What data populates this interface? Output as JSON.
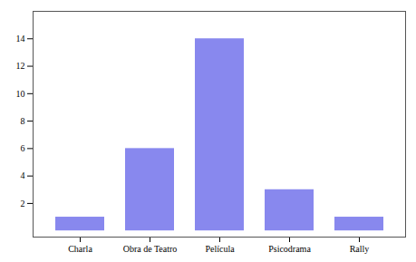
{
  "chart_data": {
    "type": "bar",
    "categories": [
      "Charla",
      "Obra de Teatro",
      "Película",
      "Psicodrama",
      "Rally"
    ],
    "values": [
      1,
      6,
      14,
      3,
      1
    ],
    "color": "#8888ee",
    "ylim": [
      -0.45,
      16
    ],
    "yticks": [
      2,
      4,
      6,
      8,
      10,
      12,
      14
    ],
    "grid": false
  }
}
